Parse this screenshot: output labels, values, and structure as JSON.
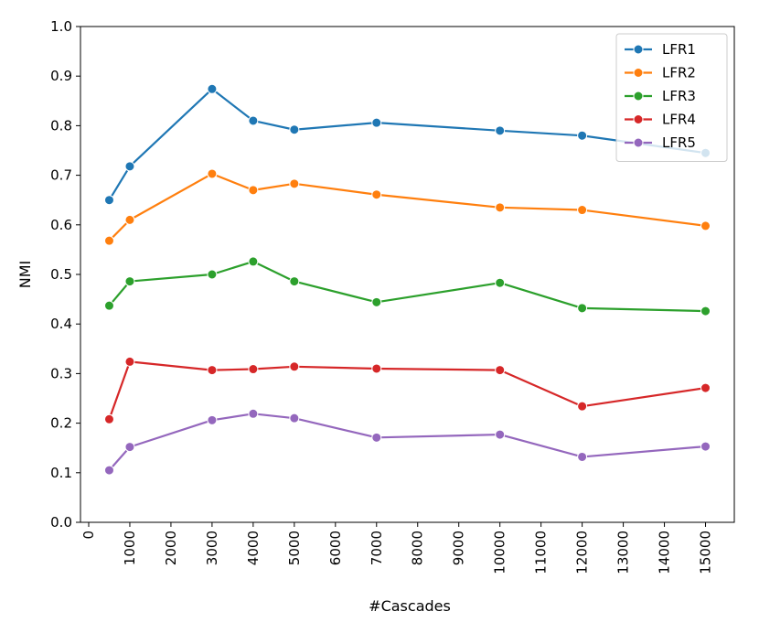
{
  "chart_data": {
    "type": "line",
    "title": "",
    "xlabel": "#Cascades",
    "ylabel": "NMI",
    "xlim": [
      -200,
      15700
    ],
    "ylim": [
      0.0,
      1.0
    ],
    "xticks": [
      0,
      1000,
      2000,
      3000,
      4000,
      5000,
      6000,
      7000,
      8000,
      9000,
      10000,
      11000,
      12000,
      13000,
      14000,
      15000
    ],
    "xtick_labels": [
      "0",
      "1000",
      "2000",
      "3000",
      "4000",
      "5000",
      "6000",
      "7000",
      "8000",
      "9000",
      "10000",
      "11000",
      "12000",
      "13000",
      "14000",
      "15000"
    ],
    "yticks": [
      0.0,
      0.1,
      0.2,
      0.3,
      0.4,
      0.5,
      0.6,
      0.7,
      0.8,
      0.9,
      1.0
    ],
    "ytick_labels": [
      "0.0",
      "0.1",
      "0.2",
      "0.3",
      "0.4",
      "0.5",
      "0.6",
      "0.7",
      "0.8",
      "0.9",
      "1.0"
    ],
    "grid": false,
    "legend_position": "top-right",
    "x": [
      500,
      1000,
      3000,
      4000,
      5000,
      7000,
      10000,
      12000,
      15000
    ],
    "series": [
      {
        "name": "LFR1",
        "color": "#1f77b4",
        "values": [
          0.65,
          0.718,
          0.874,
          0.81,
          0.792,
          0.806,
          0.79,
          0.78,
          0.745
        ]
      },
      {
        "name": "LFR2",
        "color": "#ff7f0e",
        "values": [
          0.568,
          0.61,
          0.703,
          0.67,
          0.683,
          0.661,
          0.635,
          0.63,
          0.598
        ]
      },
      {
        "name": "LFR3",
        "color": "#2ca02c",
        "values": [
          0.437,
          0.486,
          0.5,
          0.526,
          0.486,
          0.444,
          0.483,
          0.432,
          0.426
        ]
      },
      {
        "name": "LFR4",
        "color": "#d62728",
        "values": [
          0.208,
          0.324,
          0.307,
          0.309,
          0.314,
          0.31,
          0.307,
          0.234,
          0.271
        ]
      },
      {
        "name": "LFR5",
        "color": "#9467bd",
        "values": [
          0.105,
          0.152,
          0.206,
          0.219,
          0.21,
          0.171,
          0.177,
          0.132,
          0.153
        ]
      }
    ]
  }
}
